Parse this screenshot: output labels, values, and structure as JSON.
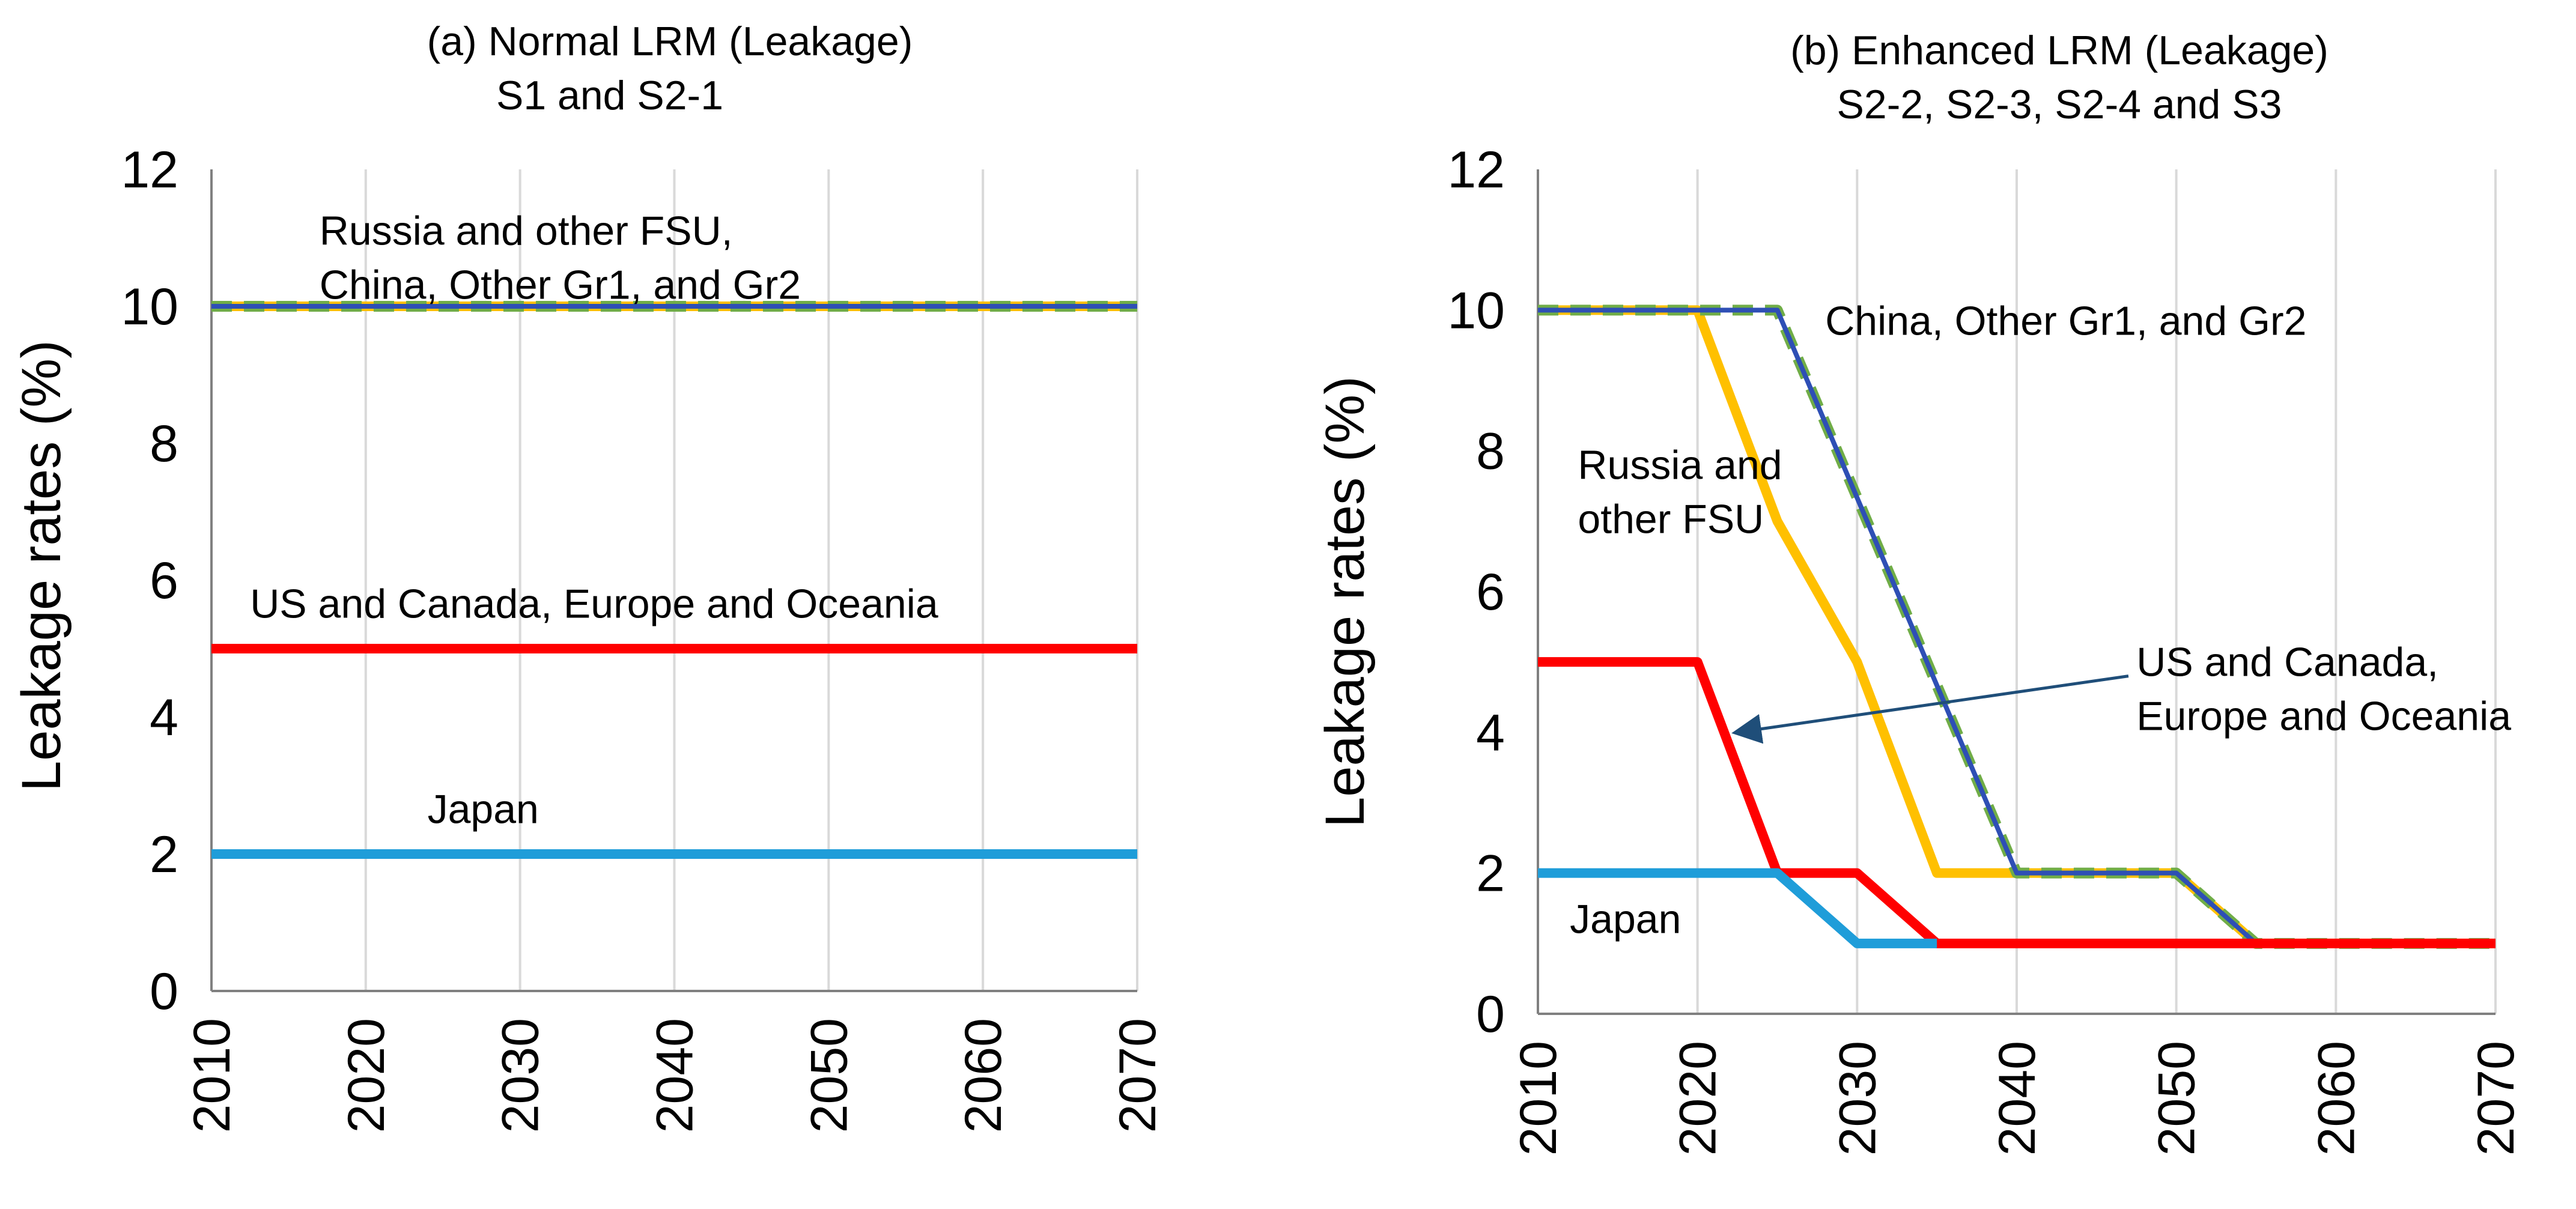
{
  "chart_data": [
    {
      "type": "line",
      "title_lines": [
        "(a) Normal LRM (Leakage)",
        "S1 and S2-1"
      ],
      "xlabel": "",
      "ylabel": "Leakage rates (%)",
      "xlim": [
        2010,
        2070
      ],
      "ylim": [
        0,
        12
      ],
      "x_ticks": [
        "2010",
        "2020",
        "2030",
        "2040",
        "2050",
        "2060",
        "2070"
      ],
      "y_ticks": [
        "0",
        "2",
        "4",
        "6",
        "8",
        "10",
        "12"
      ],
      "grid": "vertical",
      "series": [
        {
          "name": "Russia and other FSU",
          "color": "#FFC000",
          "dash": false,
          "x": [
            2010,
            2070
          ],
          "values": [
            10,
            10
          ]
        },
        {
          "name": "China, Other Gr1, and Gr2 (green dashed)",
          "color": "#70AD47",
          "dash": true,
          "x": [
            2010,
            2070
          ],
          "values": [
            10,
            10
          ]
        },
        {
          "name": "China, Other Gr1, and Gr2 (blue)",
          "color": "#2E4FB5",
          "dash": false,
          "x": [
            2010,
            2070
          ],
          "values": [
            10,
            10
          ]
        },
        {
          "name": "US and Canada, Europe and Oceania",
          "color": "#FF0000",
          "dash": false,
          "x": [
            2010,
            2070
          ],
          "values": [
            5,
            5
          ]
        },
        {
          "name": "Japan",
          "color": "#1F9DD9",
          "dash": false,
          "x": [
            2010,
            2070
          ],
          "values": [
            2,
            2
          ]
        }
      ],
      "annotations": [
        {
          "lines": [
            "Russia and other FSU,",
            "China, Other Gr1, and Gr2"
          ],
          "at": [
            2017,
            10.9
          ]
        },
        {
          "lines": [
            "US and Canada, Europe and Oceania"
          ],
          "at": [
            2012.5,
            5.45
          ]
        },
        {
          "lines": [
            "Japan"
          ],
          "at": [
            2024,
            2.45
          ]
        }
      ]
    },
    {
      "type": "line",
      "title_lines": [
        "(b) Enhanced LRM (Leakage)",
        "S2-2, S2-3, S2-4 and S3"
      ],
      "xlabel": "",
      "ylabel": "Leakage rates (%)",
      "xlim": [
        2010,
        2070
      ],
      "ylim": [
        0,
        12
      ],
      "x_ticks": [
        "2010",
        "2020",
        "2030",
        "2040",
        "2050",
        "2060",
        "2070"
      ],
      "y_ticks": [
        "0",
        "2",
        "4",
        "6",
        "8",
        "10",
        "12"
      ],
      "grid": "vertical",
      "series": [
        {
          "name": "Russia and other FSU",
          "color": "#FFC000",
          "dash": false,
          "x": [
            2010,
            2020,
            2025,
            2030,
            2035,
            2050,
            2055,
            2070
          ],
          "values": [
            10,
            10,
            7,
            5,
            2,
            2,
            1,
            1
          ]
        },
        {
          "name": "China, Other Gr1, and Gr2 (green dashed)",
          "color": "#70AD47",
          "dash": true,
          "x": [
            2010,
            2025,
            2040,
            2050,
            2055,
            2070
          ],
          "values": [
            10,
            10,
            2,
            2,
            1,
            1
          ]
        },
        {
          "name": "China, Other Gr1, and Gr2 (blue)",
          "color": "#2E4FB5",
          "dash": false,
          "x": [
            2010,
            2025,
            2040,
            2050,
            2055,
            2070
          ],
          "values": [
            10,
            10,
            2,
            2,
            1,
            1
          ]
        },
        {
          "name": "US and Canada, Europe and Oceania",
          "color": "#FF0000",
          "dash": false,
          "x": [
            2010,
            2020,
            2025,
            2030,
            2035,
            2070
          ],
          "values": [
            5,
            5,
            2,
            2,
            1,
            1
          ]
        },
        {
          "name": "Japan",
          "color": "#1F9DD9",
          "dash": false,
          "x": [
            2010,
            2025,
            2030,
            2035
          ],
          "values": [
            2,
            2,
            1,
            1
          ]
        }
      ],
      "annotations": [
        {
          "lines": [
            "China, Other Gr1, and Gr2"
          ],
          "at": [
            2028,
            9.65
          ]
        },
        {
          "lines": [
            "Russia and",
            "other FSU"
          ],
          "at": [
            2012.5,
            7.6
          ]
        },
        {
          "lines": [
            "US and Canada,",
            "Europe and Oceania"
          ],
          "at": [
            2047.5,
            4.8
          ]
        },
        {
          "lines": [
            "Japan"
          ],
          "at": [
            2012,
            1.15
          ]
        }
      ],
      "arrow": {
        "from": [
          2047,
          4.8
        ],
        "to": [
          2022.5,
          4.0
        ],
        "color": "#1F4E79"
      }
    }
  ]
}
